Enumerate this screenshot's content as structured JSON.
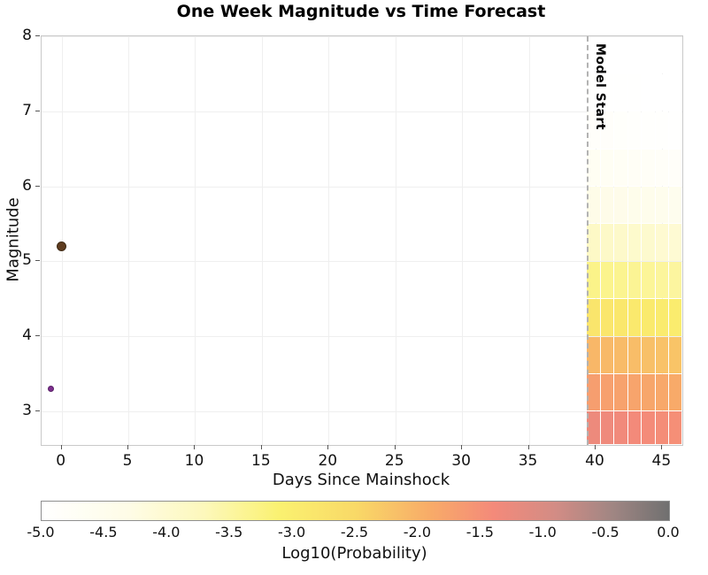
{
  "chart_data": {
    "type": "heatmap",
    "title": "One Week Magnitude vs Time Forecast",
    "xlabel": "Days Since Mainshock",
    "ylabel": "Magnitude",
    "xlim": [
      -1.5,
      46.5
    ],
    "ylim": [
      2.55,
      8.0
    ],
    "grid": true,
    "x_ticks": {
      "values": [
        0,
        5,
        10,
        15,
        20,
        25,
        30,
        35,
        40,
        45
      ],
      "labels": [
        "0",
        "5",
        "10",
        "15",
        "20",
        "25",
        "30",
        "35",
        "40",
        "45"
      ]
    },
    "y_ticks": {
      "values": [
        3,
        4,
        5,
        6,
        7,
        8
      ],
      "labels": [
        "3",
        "4",
        "5",
        "6",
        "7",
        "8"
      ]
    },
    "annotation": {
      "label": "Model Start",
      "day": 39.33,
      "line_style": "dashed",
      "line_color": "#b3b3b3"
    },
    "colormap_stops": [
      [
        -5.0,
        "#ffffff"
      ],
      [
        -4.3,
        "#fefce6"
      ],
      [
        -3.7,
        "#fdf8bb"
      ],
      [
        -3.1,
        "#faf170"
      ],
      [
        -2.5,
        "#f9d967"
      ],
      [
        -1.9,
        "#f8ab68"
      ],
      [
        -1.4,
        "#f48a7a"
      ],
      [
        -0.9,
        "#d28c85"
      ],
      [
        -0.45,
        "#a08683"
      ],
      [
        0.0,
        "#707070"
      ]
    ],
    "colorbar": {
      "label": "Log10(Probability)",
      "vmin": -5.0,
      "vmax": 0.0,
      "tick_values": [
        -5.0,
        -4.5,
        -4.0,
        -3.5,
        -3.0,
        -2.5,
        -2.0,
        -1.5,
        -1.0,
        -0.5,
        0.0
      ],
      "tick_labels": [
        "-5.0",
        "-4.5",
        "-4.0",
        "-3.5",
        "-3.0",
        "-2.5",
        "-2.0",
        "-1.5",
        "-1.0",
        "-0.5",
        "0.0"
      ]
    },
    "forecast_grid": {
      "day_edges": [
        39.33,
        40.35,
        41.38,
        42.4,
        43.42,
        44.45,
        45.47,
        46.5
      ],
      "magnitude_bins": [
        [
          2.55,
          3.0
        ],
        [
          3.0,
          3.5
        ],
        [
          3.5,
          4.0
        ],
        [
          4.0,
          4.5
        ],
        [
          4.5,
          5.0
        ],
        [
          5.0,
          5.5
        ],
        [
          5.5,
          6.0
        ],
        [
          6.0,
          6.5
        ],
        [
          6.5,
          7.0
        ],
        [
          7.0,
          7.5
        ],
        [
          7.5,
          8.0
        ]
      ],
      "log10_probability": [
        [
          -1.3,
          -1.33,
          -1.36,
          -1.39,
          -1.42,
          -1.45,
          -1.48
        ],
        [
          -1.7,
          -1.73,
          -1.76,
          -1.79,
          -1.82,
          -1.85,
          -1.88
        ],
        [
          -2.05,
          -2.08,
          -2.11,
          -2.14,
          -2.17,
          -2.2,
          -2.23
        ],
        [
          -2.8,
          -2.83,
          -2.86,
          -2.89,
          -2.92,
          -2.95,
          -2.98
        ],
        [
          -3.3,
          -3.33,
          -3.36,
          -3.39,
          -3.42,
          -3.45,
          -3.48
        ],
        [
          -3.85,
          -3.88,
          -3.91,
          -3.94,
          -3.97,
          -4.0,
          -4.03
        ],
        [
          -4.35,
          -4.38,
          -4.41,
          -4.44,
          -4.47,
          -4.5,
          -4.53
        ],
        [
          -4.65,
          -4.68,
          -4.71,
          -4.74,
          -4.77,
          -4.8,
          -4.83
        ],
        [
          -4.85,
          -4.87,
          -4.89,
          -4.91,
          -4.93,
          -4.95,
          -4.97
        ],
        [
          -4.95,
          -4.96,
          -4.97,
          -4.98,
          -4.99,
          -5.0,
          -5.0
        ],
        [
          -5.0,
          -5.0,
          -5.0,
          -5.0,
          -5.0,
          -5.0,
          -5.0
        ]
      ]
    },
    "observed_events": [
      {
        "name": "mainshock",
        "x": 0.0,
        "y": 5.2,
        "size": 11,
        "color": "#5e3c1f",
        "edge": "#3f2a15"
      },
      {
        "name": "aftershock",
        "x": -0.8,
        "y": 3.3,
        "size": 7,
        "color": "#7d2f8e",
        "edge": "#581f66"
      }
    ]
  }
}
